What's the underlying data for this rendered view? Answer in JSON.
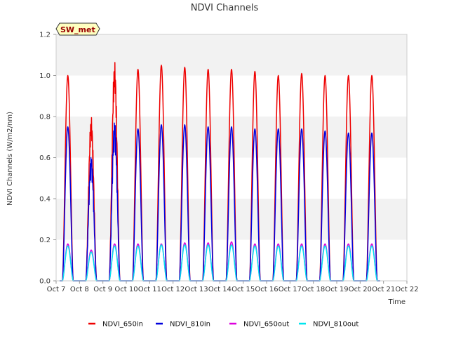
{
  "chart_data": {
    "type": "line",
    "title": "NDVI Channels",
    "xlabel": "Time",
    "ylabel": "NDVI Channels (W/m2/nm)",
    "ylim": [
      0.0,
      1.2
    ],
    "y_ticks": [
      "0.0",
      "0.2",
      "0.4",
      "0.6",
      "0.8",
      "1.0",
      "1.2"
    ],
    "x_range_days": [
      "Oct 7",
      "Oct 22"
    ],
    "x_ticks": [
      "Oct 7",
      "Oct 8",
      "Oct 9",
      "Oct 10",
      "Oct 11",
      "Oct 12",
      "Oct 13",
      "Oct 14",
      "Oct 15",
      "Oct 16",
      "Oct 17",
      "Oct 18",
      "Oct 19",
      "Oct 20",
      "Oct 21",
      "Oct 22"
    ],
    "grid": "horizontal bands",
    "legend_placement": "bottom-center",
    "site_badge": "SW_met",
    "series": [
      {
        "name": "NDVI_650in",
        "color": "#ee0000",
        "daily_peaks": [
          {
            "date": "Oct 7",
            "peak": 1.0
          },
          {
            "date": "Oct 8",
            "peak": 0.8
          },
          {
            "date": "Oct 9",
            "peak": 1.07
          },
          {
            "date": "Oct 10",
            "peak": 1.03
          },
          {
            "date": "Oct 11",
            "peak": 1.05
          },
          {
            "date": "Oct 12",
            "peak": 1.04
          },
          {
            "date": "Oct 13",
            "peak": 1.03
          },
          {
            "date": "Oct 14",
            "peak": 1.03
          },
          {
            "date": "Oct 15",
            "peak": 1.02
          },
          {
            "date": "Oct 16",
            "peak": 1.0
          },
          {
            "date": "Oct 17",
            "peak": 1.01
          },
          {
            "date": "Oct 18",
            "peak": 1.0
          },
          {
            "date": "Oct 19",
            "peak": 1.0
          },
          {
            "date": "Oct 20",
            "peak": 1.0
          }
        ]
      },
      {
        "name": "NDVI_810in",
        "color": "#0000dd",
        "daily_peaks": [
          {
            "date": "Oct 7",
            "peak": 0.75
          },
          {
            "date": "Oct 8",
            "peak": 0.61
          },
          {
            "date": "Oct 9",
            "peak": 0.78
          },
          {
            "date": "Oct 10",
            "peak": 0.74
          },
          {
            "date": "Oct 11",
            "peak": 0.76
          },
          {
            "date": "Oct 12",
            "peak": 0.76
          },
          {
            "date": "Oct 13",
            "peak": 0.75
          },
          {
            "date": "Oct 14",
            "peak": 0.75
          },
          {
            "date": "Oct 15",
            "peak": 0.74
          },
          {
            "date": "Oct 16",
            "peak": 0.74
          },
          {
            "date": "Oct 17",
            "peak": 0.74
          },
          {
            "date": "Oct 18",
            "peak": 0.73
          },
          {
            "date": "Oct 19",
            "peak": 0.72
          },
          {
            "date": "Oct 20",
            "peak": 0.72
          }
        ]
      },
      {
        "name": "NDVI_650out",
        "color": "#dd00dd",
        "daily_peaks": [
          {
            "date": "Oct 7",
            "peak": 0.18
          },
          {
            "date": "Oct 8",
            "peak": 0.15
          },
          {
            "date": "Oct 9",
            "peak": 0.18
          },
          {
            "date": "Oct 10",
            "peak": 0.18
          },
          {
            "date": "Oct 11",
            "peak": 0.18
          },
          {
            "date": "Oct 12",
            "peak": 0.185
          },
          {
            "date": "Oct 13",
            "peak": 0.185
          },
          {
            "date": "Oct 14",
            "peak": 0.19
          },
          {
            "date": "Oct 15",
            "peak": 0.18
          },
          {
            "date": "Oct 16",
            "peak": 0.18
          },
          {
            "date": "Oct 17",
            "peak": 0.18
          },
          {
            "date": "Oct 18",
            "peak": 0.18
          },
          {
            "date": "Oct 19",
            "peak": 0.18
          },
          {
            "date": "Oct 20",
            "peak": 0.18
          }
        ]
      },
      {
        "name": "NDVI_810out",
        "color": "#00e5ee",
        "daily_peaks": [
          {
            "date": "Oct 7",
            "peak": 0.17
          },
          {
            "date": "Oct 8",
            "peak": 0.14
          },
          {
            "date": "Oct 9",
            "peak": 0.17
          },
          {
            "date": "Oct 10",
            "peak": 0.17
          },
          {
            "date": "Oct 11",
            "peak": 0.175
          },
          {
            "date": "Oct 12",
            "peak": 0.175
          },
          {
            "date": "Oct 13",
            "peak": 0.175
          },
          {
            "date": "Oct 14",
            "peak": 0.175
          },
          {
            "date": "Oct 15",
            "peak": 0.17
          },
          {
            "date": "Oct 16",
            "peak": 0.17
          },
          {
            "date": "Oct 17",
            "peak": 0.17
          },
          {
            "date": "Oct 18",
            "peak": 0.17
          },
          {
            "date": "Oct 19",
            "peak": 0.17
          },
          {
            "date": "Oct 20",
            "peak": 0.17
          }
        ]
      }
    ]
  }
}
